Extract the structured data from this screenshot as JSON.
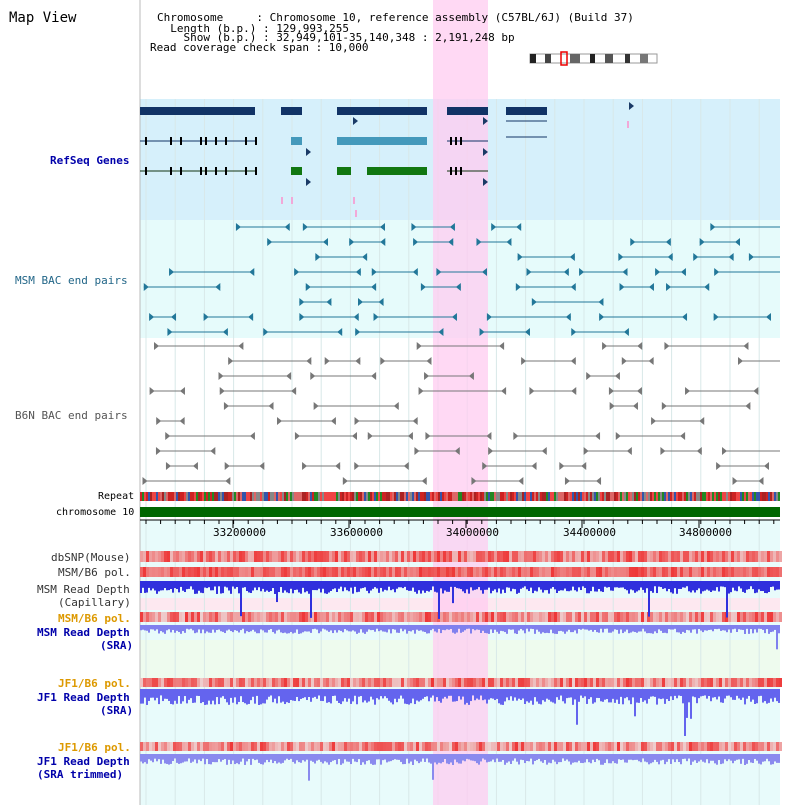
{
  "view_title": "Map View",
  "header": {
    "chromosome": "Chromosome     : Chromosome 10, reference assembly (C57BL/6J) (Build 37)",
    "length": "  Length (b.p.) : 129,993,255",
    "show": "    Show (b.p.) : 32,949,101-35,140,348 : 2,191,248 bp",
    "span": "Read coverage check span : 10,000"
  },
  "tracks": {
    "refseq": "RefSeq Genes",
    "msm_bac": "MSM BAC end pairs",
    "b6n_bac": "B6N BAC end pairs",
    "repeat": "Repeat",
    "chromosome": "chromosome 10",
    "dbsnp": "dbSNP(Mouse)",
    "msm_b6_pol_1": "MSM/B6 pol.",
    "msm_depth_cap_1": "MSM Read Depth",
    "msm_depth_cap_2": "(Capillary)",
    "msm_b6_pol_2": "MSM/B6 pol.",
    "msm_depth_sra_1": "MSM Read Depth",
    "msm_depth_sra_2": "(SRA)",
    "jf1_b6_pol_1": "JF1/B6 pol.",
    "jf1_depth_sra_1": "JF1 Read Depth",
    "jf1_depth_sra_2": "(SRA)",
    "jf1_b6_pol_2": "JF1/B6 pol.",
    "jf1_depth_trim_1": "JF1 Read Depth",
    "jf1_depth_trim_2": "(SRA trimmed)"
  },
  "axis": {
    "ticks": [
      "33200000",
      "33600000",
      "34000000",
      "34400000",
      "34800000"
    ]
  },
  "colors": {
    "refseq_bg": "#d6f0fb",
    "bac_bg": "#e6fbfb",
    "highlight": "#ffccf0",
    "chromosome_bar": "#006600",
    "snp_red": "#ee3333",
    "depth_blue": "#3333ee"
  }
}
